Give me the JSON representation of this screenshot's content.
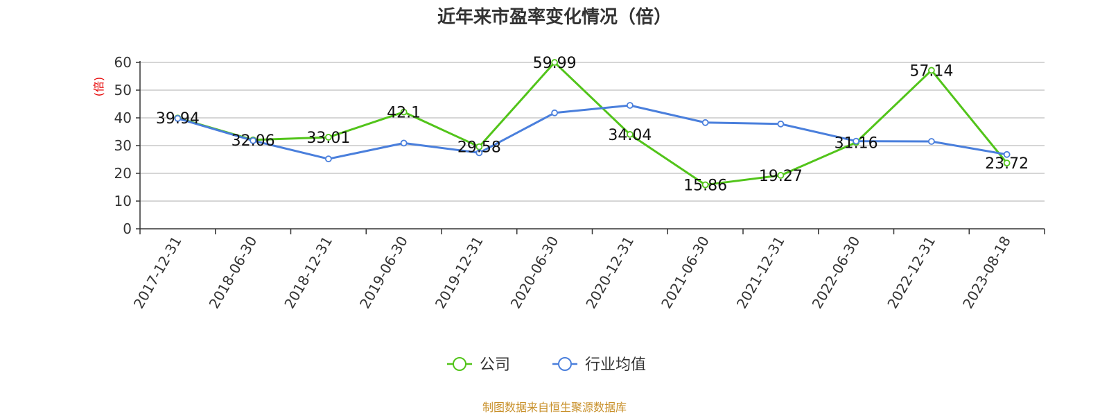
{
  "chart_data": {
    "type": "line",
    "title": "近年来市盈率变化情况（倍）",
    "ylabel": "(倍)",
    "xlabel": "",
    "ylim": [
      0,
      60
    ],
    "yticks": [
      0,
      10,
      20,
      30,
      40,
      50,
      60
    ],
    "grid": true,
    "legend_position": "bottom-center",
    "categories": [
      "2017-12-31",
      "2018-06-30",
      "2018-12-31",
      "2019-06-30",
      "2019-12-31",
      "2020-06-30",
      "2020-12-31",
      "2021-06-30",
      "2021-12-31",
      "2022-06-30",
      "2022-12-31",
      "2023-08-18"
    ],
    "series": [
      {
        "name": "公司",
        "color": "#52c41a",
        "values": [
          39.94,
          32.06,
          33.01,
          42.1,
          29.58,
          59.99,
          34.04,
          15.86,
          19.27,
          31.16,
          57.14,
          23.72
        ],
        "labels": [
          "39.94",
          "32.06",
          "33.01",
          "42.1",
          "29.58",
          "59.99",
          "34.04",
          "15.86",
          "19.27",
          "31.16",
          "57.14",
          "23.72"
        ]
      },
      {
        "name": "行业均值",
        "color": "#4a7fdc",
        "values": [
          39.8,
          31.8,
          25.2,
          30.9,
          27.4,
          41.8,
          44.5,
          38.3,
          37.8,
          31.6,
          31.5,
          26.8
        ]
      }
    ]
  },
  "footer": {
    "source": "制图数据来自恒生聚源数据库"
  }
}
